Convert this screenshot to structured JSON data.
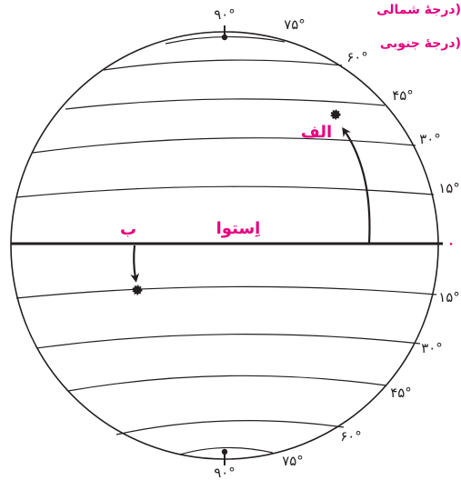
{
  "legend": {
    "north_label": "درجهٔ شمالی)",
    "south_label": "درجهٔ جنوبی)"
  },
  "equator": {
    "label": "اِستوا",
    "zero_label": "۰"
  },
  "points": {
    "a_label": "الف",
    "b_label": "ب"
  },
  "latitudes_north": [
    {
      "id": "15",
      "label": "۱۵°"
    },
    {
      "id": "30",
      "label": "۳۰°"
    },
    {
      "id": "45",
      "label": "۴۵°"
    },
    {
      "id": "60",
      "label": "۶۰°"
    },
    {
      "id": "75",
      "label": "۷۵°"
    },
    {
      "id": "90",
      "label": "۹۰°"
    }
  ],
  "latitudes_south": [
    {
      "id": "15",
      "label": "۱۵°"
    },
    {
      "id": "30",
      "label": "۳۰°"
    },
    {
      "id": "45",
      "label": "۴۵°"
    },
    {
      "id": "60",
      "label": "۶۰°"
    },
    {
      "id": "75",
      "label": "۷۵°"
    },
    {
      "id": "90",
      "label": "۹۰°"
    }
  ],
  "colors": {
    "accent": "#e6007e",
    "line": "#231f20"
  }
}
